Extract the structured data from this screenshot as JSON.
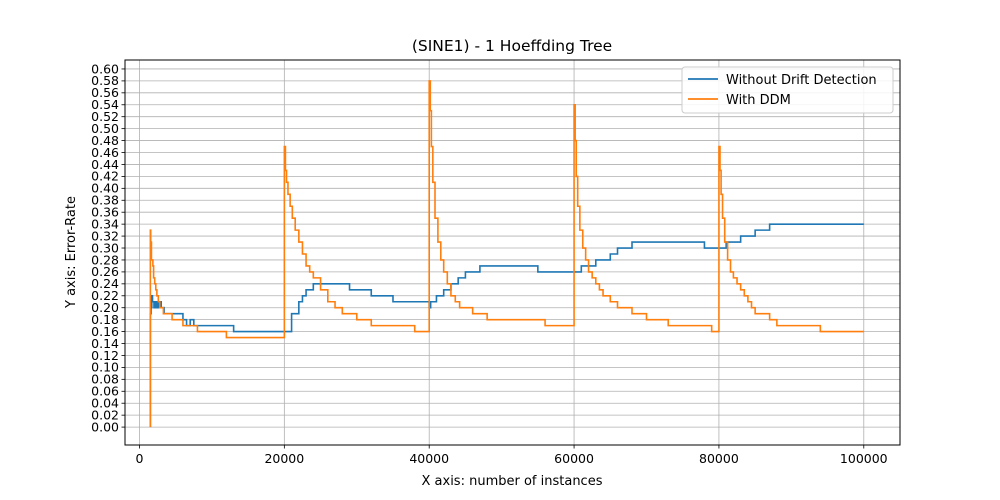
{
  "chart_data": {
    "type": "line",
    "title": "(SINE1) - 1 Hoeffding Tree",
    "xlabel": "X axis: number of instances",
    "ylabel": "Y axis: Error-Rate",
    "xlim": [
      -2000,
      105000
    ],
    "ylim": [
      -0.03,
      0.615
    ],
    "xticks": [
      0,
      20000,
      40000,
      60000,
      80000,
      100000
    ],
    "xtick_labels": [
      "0",
      "20000",
      "40000",
      "60000",
      "80000",
      "100000"
    ],
    "yticks": [
      0.0,
      0.02,
      0.04,
      0.06,
      0.08,
      0.1,
      0.12,
      0.14,
      0.16,
      0.18,
      0.2,
      0.22,
      0.24,
      0.26,
      0.28,
      0.3,
      0.32,
      0.34,
      0.36,
      0.38,
      0.4,
      0.42,
      0.44,
      0.46,
      0.48,
      0.5,
      0.52,
      0.54,
      0.56,
      0.58,
      0.6
    ],
    "ytick_labels": [
      "0.00",
      "0.02",
      "0.04",
      "0.06",
      "0.08",
      "0.10",
      "0.12",
      "0.14",
      "0.16",
      "0.18",
      "0.20",
      "0.22",
      "0.24",
      "0.26",
      "0.28",
      "0.30",
      "0.32",
      "0.34",
      "0.36",
      "0.38",
      "0.40",
      "0.42",
      "0.44",
      "0.46",
      "0.48",
      "0.50",
      "0.52",
      "0.54",
      "0.56",
      "0.58",
      "0.60"
    ],
    "grid": true,
    "legend_position": "top-right",
    "series": [
      {
        "name": "Without Drift Detection",
        "color": "#1f77b4",
        "x": [
          1500,
          1500,
          1600,
          1700,
          1800,
          2000,
          2200,
          2400,
          2600,
          3000,
          3400,
          4000,
          5000,
          6000,
          6500,
          7000,
          7500,
          8000,
          9000,
          11000,
          13000,
          15000,
          17000,
          19000,
          20000,
          21000,
          22000,
          22500,
          23000,
          23500,
          24000,
          25000,
          26000,
          27000,
          28000,
          29000,
          30000,
          32000,
          34000,
          35000,
          36000,
          38000,
          40000,
          40200,
          41000,
          42000,
          43000,
          44000,
          45000,
          46000,
          47000,
          50000,
          53000,
          54000,
          55000,
          57000,
          60000,
          61000,
          62000,
          63000,
          64000,
          65000,
          66000,
          67000,
          68000,
          72000,
          76000,
          78000,
          80000,
          81000,
          82000,
          83000,
          84000,
          85000,
          86000,
          87000,
          88000,
          90000,
          95000,
          100000
        ],
        "y": [
          0.0,
          0.19,
          0.2,
          0.22,
          0.21,
          0.2,
          0.21,
          0.2,
          0.21,
          0.2,
          0.19,
          0.19,
          0.19,
          0.18,
          0.17,
          0.18,
          0.17,
          0.17,
          0.17,
          0.17,
          0.16,
          0.16,
          0.16,
          0.16,
          0.16,
          0.19,
          0.21,
          0.22,
          0.23,
          0.23,
          0.24,
          0.24,
          0.24,
          0.24,
          0.24,
          0.23,
          0.23,
          0.22,
          0.22,
          0.21,
          0.21,
          0.21,
          0.2,
          0.21,
          0.22,
          0.23,
          0.24,
          0.25,
          0.26,
          0.26,
          0.27,
          0.27,
          0.27,
          0.27,
          0.26,
          0.26,
          0.26,
          0.27,
          0.27,
          0.28,
          0.28,
          0.29,
          0.3,
          0.3,
          0.31,
          0.31,
          0.31,
          0.3,
          0.3,
          0.31,
          0.31,
          0.32,
          0.32,
          0.33,
          0.33,
          0.34,
          0.34,
          0.34,
          0.34,
          0.34
        ]
      },
      {
        "name": "With DDM",
        "color": "#ff7f0e",
        "x": [
          1500,
          1500,
          1550,
          1650,
          1750,
          1850,
          1950,
          2100,
          2250,
          2400,
          2600,
          2800,
          3000,
          3300,
          3600,
          4000,
          4500,
          5000,
          6000,
          7000,
          8000,
          9000,
          10000,
          11000,
          12000,
          13000,
          14000,
          15000,
          16000,
          17000,
          18000,
          19000,
          20000,
          20000,
          20150,
          20300,
          20500,
          20800,
          21100,
          21500,
          22000,
          22500,
          23000,
          23500,
          24000,
          25000,
          26000,
          27000,
          28000,
          30000,
          32000,
          35000,
          38000,
          39500,
          40000,
          40000,
          40150,
          40300,
          40500,
          40800,
          41200,
          41600,
          42000,
          42500,
          43000,
          43600,
          44200,
          45000,
          46000,
          47000,
          48000,
          50000,
          52000,
          54000,
          56000,
          58000,
          60000,
          60000,
          60150,
          60300,
          60500,
          60800,
          61200,
          61600,
          62000,
          62500,
          63000,
          63500,
          64000,
          65000,
          66000,
          68000,
          70000,
          73000,
          76000,
          79000,
          80000,
          80000,
          80150,
          80300,
          80500,
          80800,
          81200,
          81600,
          82000,
          82500,
          83000,
          83500,
          84000,
          84500,
          85000,
          86000,
          87000,
          88000,
          90000,
          92000,
          94000,
          96000,
          98000,
          100000
        ],
        "y": [
          0.0,
          0.33,
          0.31,
          0.28,
          0.28,
          0.27,
          0.25,
          0.24,
          0.23,
          0.22,
          0.21,
          0.2,
          0.2,
          0.19,
          0.19,
          0.19,
          0.18,
          0.18,
          0.17,
          0.17,
          0.16,
          0.16,
          0.16,
          0.16,
          0.15,
          0.15,
          0.15,
          0.15,
          0.15,
          0.15,
          0.15,
          0.15,
          0.15,
          0.47,
          0.43,
          0.41,
          0.39,
          0.37,
          0.35,
          0.33,
          0.31,
          0.29,
          0.27,
          0.26,
          0.25,
          0.23,
          0.21,
          0.2,
          0.19,
          0.18,
          0.17,
          0.17,
          0.16,
          0.16,
          0.16,
          0.58,
          0.53,
          0.47,
          0.41,
          0.35,
          0.31,
          0.28,
          0.26,
          0.24,
          0.22,
          0.21,
          0.2,
          0.2,
          0.19,
          0.19,
          0.18,
          0.18,
          0.18,
          0.18,
          0.17,
          0.17,
          0.17,
          0.54,
          0.48,
          0.42,
          0.37,
          0.33,
          0.3,
          0.28,
          0.26,
          0.25,
          0.24,
          0.23,
          0.22,
          0.21,
          0.2,
          0.19,
          0.18,
          0.17,
          0.17,
          0.16,
          0.16,
          0.47,
          0.43,
          0.39,
          0.35,
          0.31,
          0.28,
          0.26,
          0.25,
          0.24,
          0.23,
          0.22,
          0.21,
          0.2,
          0.19,
          0.19,
          0.18,
          0.17,
          0.17,
          0.17,
          0.16,
          0.16,
          0.16,
          0.16
        ]
      }
    ]
  }
}
